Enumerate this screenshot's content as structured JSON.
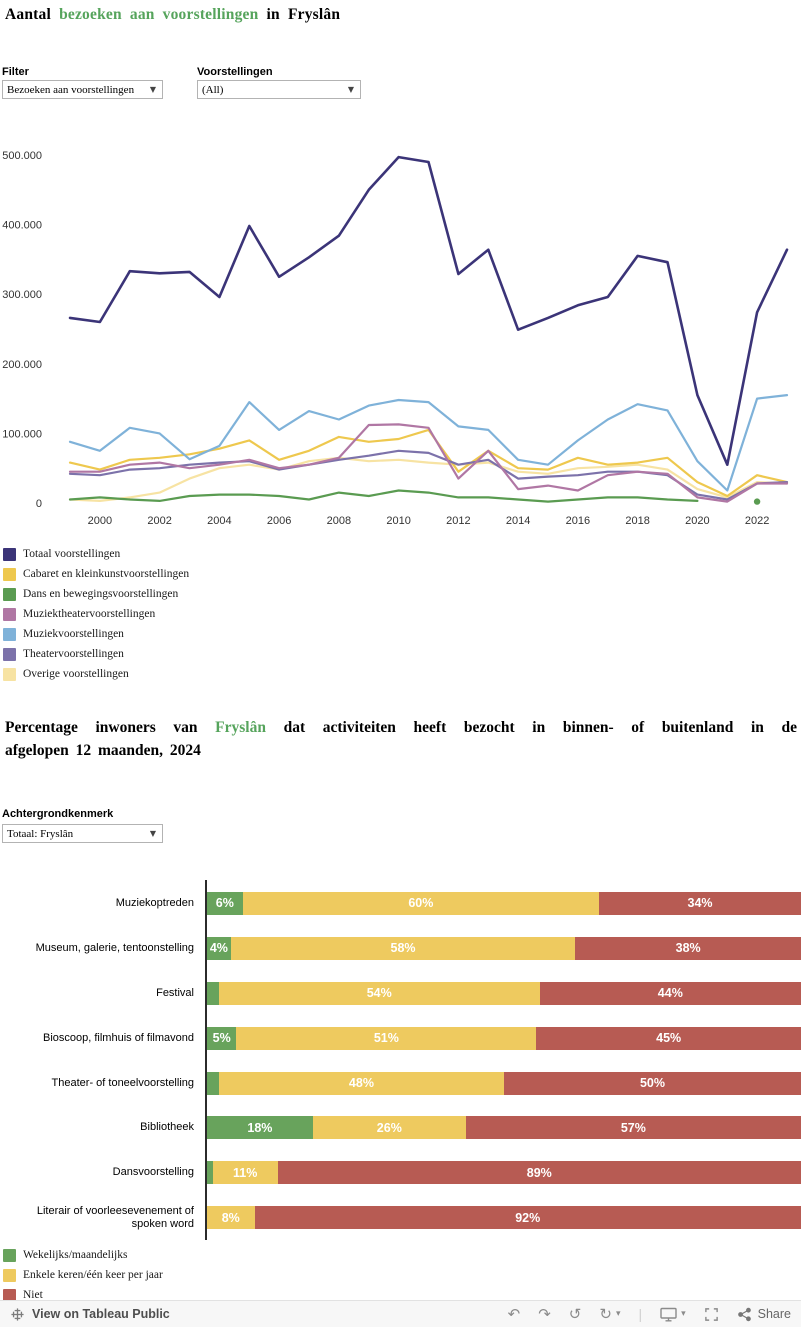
{
  "colors": {
    "accent_green": "#56a45c",
    "axis_text": "#333333",
    "bar_axis": "#2b2b2b",
    "footer_bg": "#f7f7f7"
  },
  "titles": {
    "chart1_prefix": "Aantal ",
    "chart1_highlight": "bezoeken aan voorstellingen",
    "chart1_suffix": " in Fryslân",
    "chart2_prefix": "Percentage inwoners van ",
    "chart2_highlight": "Fryslân",
    "chart2_line1_suffix": " dat activiteiten heeft bezocht in binnen- of buitenland in de",
    "chart2_line2": "afgelopen 12 maanden, 2024"
  },
  "filters": {
    "filter1": {
      "label": "Filter",
      "value": "Bezoeken aan voorstellingen"
    },
    "filter2": {
      "label": "Voorstellingen",
      "value": "(All)"
    },
    "filter3": {
      "label": "Achtergrondkenmerk",
      "value": "Totaal: Fryslân"
    }
  },
  "icons": {
    "dropdown_arrow": "▼",
    "undo": "↶",
    "redo": "↷",
    "revert": "↺",
    "refresh": "↻",
    "caret_down": "▾",
    "separator": "|"
  },
  "footer": {
    "attribution": "View on Tableau Public",
    "share_label": "Share"
  },
  "chart_data": [
    {
      "type": "line",
      "title": "Aantal bezoeken aan voorstellingen in Fryslân",
      "xlabel": "",
      "ylabel": "",
      "grid": false,
      "legend_position": "bottom-left",
      "ylim": [
        0,
        500000
      ],
      "y_ticks": [
        {
          "value": 0,
          "label": "0"
        },
        {
          "value": 100000,
          "label": "100.000"
        },
        {
          "value": 200000,
          "label": "200.000"
        },
        {
          "value": 300000,
          "label": "300.000"
        },
        {
          "value": 400000,
          "label": "400.000"
        },
        {
          "value": 500000,
          "label": "500.000"
        }
      ],
      "x": [
        1999,
        2000,
        2001,
        2002,
        2003,
        2004,
        2005,
        2006,
        2007,
        2008,
        2009,
        2010,
        2011,
        2012,
        2013,
        2014,
        2015,
        2016,
        2017,
        2018,
        2019,
        2020,
        2021,
        2022,
        2023
      ],
      "x_ticks": [
        2000,
        2002,
        2004,
        2006,
        2008,
        2010,
        2012,
        2014,
        2016,
        2018,
        2020,
        2022
      ],
      "draw_order": [
        "overige",
        "cabaret",
        "theater",
        "muziektheater",
        "muziek",
        "dans",
        "totaal"
      ],
      "series": [
        {
          "id": "totaal",
          "name": "Totaal voorstellingen",
          "color": "#3b3478",
          "stroke_width": 2.6,
          "values": [
            266000,
            260000,
            333000,
            330000,
            332000,
            296000,
            398000,
            325000,
            353000,
            384000,
            450000,
            497000,
            490000,
            329000,
            364000,
            249000,
            266000,
            284000,
            296000,
            355000,
            346000,
            155000,
            55000,
            274000,
            364000
          ]
        },
        {
          "id": "cabaret",
          "name": "Cabaret en kleinkunstvoorstellingen",
          "color": "#eec84e",
          "values": [
            58000,
            48000,
            62000,
            65000,
            70000,
            78000,
            90000,
            62000,
            75000,
            95000,
            88000,
            92000,
            105000,
            45000,
            75000,
            50000,
            48000,
            65000,
            55000,
            58000,
            65000,
            30000,
            10000,
            40000,
            30000
          ]
        },
        {
          "id": "dans",
          "name": "Dans en bewegingsvoorstellingen",
          "color": "#5a9b51",
          "values": [
            5000,
            8000,
            5000,
            3000,
            10000,
            12000,
            12000,
            10000,
            5000,
            15000,
            10000,
            18000,
            15000,
            8000,
            8000,
            5000,
            2000,
            5000,
            8000,
            8000,
            5000,
            3000,
            null,
            2000,
            null
          ]
        },
        {
          "id": "muziektheater",
          "name": "Muziektheatervoorstellingen",
          "color": "#b077a4",
          "values": [
            45000,
            45000,
            55000,
            58000,
            50000,
            55000,
            62000,
            50000,
            55000,
            65000,
            112000,
            113000,
            108000,
            35000,
            75000,
            20000,
            25000,
            18000,
            40000,
            45000,
            42000,
            8000,
            2000,
            28000,
            28000
          ]
        },
        {
          "id": "muziek",
          "name": "Muziekvoorstellingen",
          "color": "#7fb2d9",
          "values": [
            88000,
            75000,
            108000,
            100000,
            63000,
            82000,
            145000,
            105000,
            132000,
            120000,
            140000,
            148000,
            145000,
            110000,
            105000,
            62000,
            55000,
            90000,
            120000,
            142000,
            133000,
            60000,
            18000,
            150000,
            155000
          ]
        },
        {
          "id": "theater",
          "name": "Theatervoorstellingen",
          "color": "#7c72aa",
          "values": [
            42000,
            40000,
            48000,
            50000,
            55000,
            58000,
            60000,
            48000,
            55000,
            62000,
            68000,
            75000,
            72000,
            55000,
            62000,
            35000,
            38000,
            40000,
            45000,
            45000,
            40000,
            12000,
            5000,
            28000,
            30000
          ]
        },
        {
          "id": "overige",
          "name": "Overige voorstellingen",
          "color": "#f7e3a3",
          "values": [
            5000,
            3000,
            8000,
            15000,
            35000,
            50000,
            55000,
            48000,
            60000,
            65000,
            60000,
            62000,
            58000,
            55000,
            58000,
            45000,
            42000,
            50000,
            52000,
            55000,
            48000,
            20000,
            8000,
            30000,
            28000
          ]
        }
      ]
    },
    {
      "type": "bar",
      "orientation": "horizontal-stacked",
      "title": "Percentage inwoners van Fryslân dat activiteiten heeft bezocht in binnen- of buitenland in de afgelopen 12 maanden, 2024",
      "unit": "%",
      "xlim": [
        0,
        100
      ],
      "series": [
        {
          "id": "wekelijks",
          "name": "Wekelijks/maandelijks",
          "color": "#68a35c"
        },
        {
          "id": "enkele",
          "name": "Enkele keren/één keer per jaar",
          "color": "#eeca5f"
        },
        {
          "id": "niet",
          "name": "Niet",
          "color": "#b75b53"
        }
      ],
      "rows": [
        {
          "category": "Muziekoptreden",
          "values": [
            6,
            60,
            34
          ],
          "labels": [
            "6%",
            "60%",
            "34%"
          ]
        },
        {
          "category": "Museum, galerie, tentoonstelling",
          "values": [
            4,
            58,
            38
          ],
          "labels": [
            "4%",
            "58%",
            "38%"
          ]
        },
        {
          "category": "Festival",
          "values": [
            2,
            54,
            44
          ],
          "labels": [
            "",
            "54%",
            "44%"
          ]
        },
        {
          "category": "Bioscoop, filmhuis of filmavond",
          "values": [
            5,
            51,
            45
          ],
          "labels": [
            "5%",
            "51%",
            "45%"
          ]
        },
        {
          "category": "Theater- of toneelvoorstelling",
          "values": [
            2,
            48,
            50
          ],
          "labels": [
            "",
            "48%",
            "50%"
          ]
        },
        {
          "category": "Bibliotheek",
          "values": [
            18,
            26,
            57
          ],
          "labels": [
            "18%",
            "26%",
            "57%"
          ]
        },
        {
          "category": "Dansvoorstelling",
          "values": [
            1,
            11,
            89
          ],
          "labels": [
            "",
            "11%",
            "89%"
          ]
        },
        {
          "category": "Literair of voorleesevenement of spoken word",
          "values": [
            0,
            8,
            92
          ],
          "labels": [
            "",
            "8%",
            "92%"
          ]
        }
      ]
    }
  ]
}
